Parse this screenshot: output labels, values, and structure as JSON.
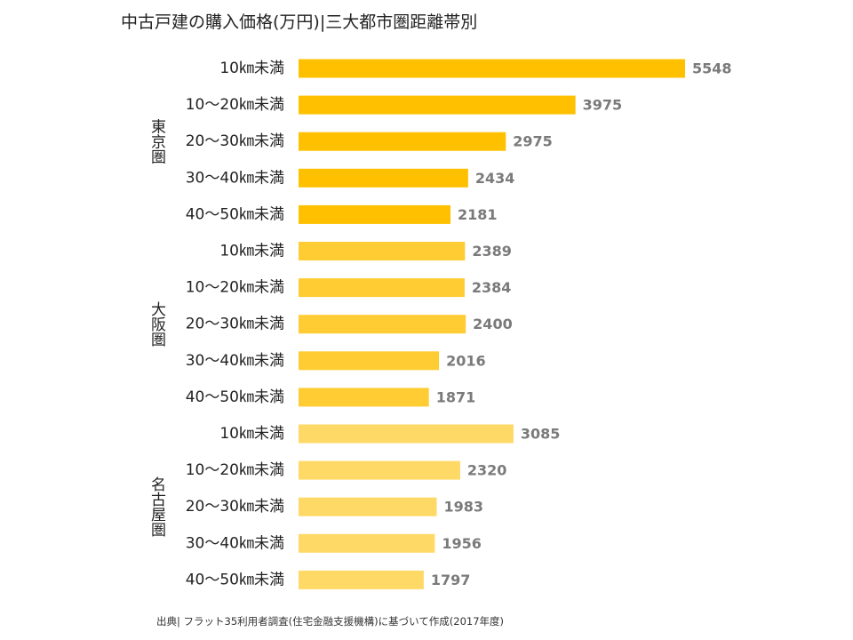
{
  "title": "中古戸建の購入価格(万円)|三大都市圏距離帯別",
  "source": "出典| フラット35利用者調査(住宅金融支援機構)に基づいて作成(2017年度)",
  "colors": {
    "tokyo": "#ffc000",
    "osaka": "#ffcc33",
    "nagoya": "#ffd966"
  },
  "chart_data": {
    "type": "bar",
    "orientation": "horizontal",
    "groups": [
      {
        "name": "東京圏",
        "color_key": "tokyo",
        "categories": [
          "10㎞未満",
          "10～20㎞未満",
          "20～30㎞未満",
          "30～40㎞未満",
          "40～50㎞未満"
        ],
        "values": [
          5548,
          3975,
          2975,
          2434,
          2181
        ]
      },
      {
        "name": "大阪圏",
        "color_key": "osaka",
        "categories": [
          "10㎞未満",
          "10～20㎞未満",
          "20～30㎞未満",
          "30～40㎞未満",
          "40～50㎞未満"
        ],
        "values": [
          2389,
          2384,
          2400,
          2016,
          1871
        ]
      },
      {
        "name": "名古屋圏",
        "color_key": "nagoya",
        "categories": [
          "10㎞未満",
          "10～20㎞未満",
          "20～30㎞未満",
          "30～40㎞未満",
          "40～50㎞未満"
        ],
        "values": [
          3085,
          2320,
          1983,
          1956,
          1797
        ]
      }
    ],
    "xlim": [
      0,
      5548
    ],
    "grid": false,
    "legend": "none"
  }
}
